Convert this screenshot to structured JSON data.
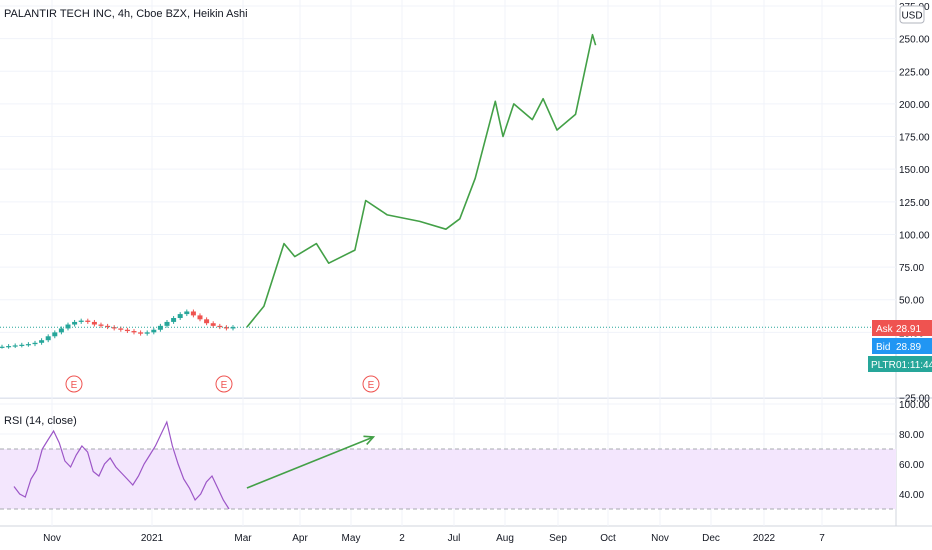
{
  "symbol_title": "PALANTIR TECH INC, 4h, Cboe BZX, Heikin Ashi",
  "currency_button": "USD",
  "colors": {
    "up": "#26a69a",
    "down": "#ef5350",
    "drawn_line": "#43a047",
    "rsi_line": "#9c56c7",
    "rsi_band": "#f3e6fd",
    "grid": "#f0f3fa",
    "axis_text": "#131722",
    "ask_bg": "#ef5350",
    "bid_bg": "#2196f3",
    "timer_bg": "#26a69a",
    "earnings": "#ef5350"
  },
  "price_scale": {
    "labels": [
      "275.00",
      "250.00",
      "225.00",
      "200.00",
      "175.00",
      "150.00",
      "125.00",
      "100.00",
      "75.00",
      "50.00",
      "25.00",
      "−25.00"
    ]
  },
  "badges": {
    "ask": {
      "label": "Ask",
      "value": "28.91"
    },
    "bid": {
      "label": "Bid",
      "value": "28.89"
    },
    "last": {
      "label": "PLTR",
      "value": "01:11:44"
    }
  },
  "earnings_marker_label": "E",
  "rsi": {
    "title": "RSI (14, close)",
    "scale_labels": [
      "100.00",
      "80.00",
      "60.00",
      "40.00"
    ]
  },
  "time_axis": {
    "labels": [
      "Nov",
      "2021",
      "Mar",
      "Apr",
      "May",
      "2",
      "Jul",
      "Aug",
      "Sep",
      "Oct",
      "Nov",
      "Dec",
      "2022",
      "7"
    ]
  },
  "chart_data": {
    "type": "line",
    "price_ylim": [
      -25,
      275
    ],
    "rsi_ylim": [
      25,
      100
    ],
    "rsi_bands": [
      30,
      70
    ],
    "current_price": 28.9,
    "candles_close": [
      14,
      14.5,
      15,
      15.5,
      16,
      17,
      19,
      22,
      25,
      28,
      31,
      33,
      34,
      33,
      31,
      30,
      29,
      28,
      27,
      26,
      25,
      24,
      25,
      27,
      30,
      33,
      36,
      39,
      41,
      38,
      35,
      32,
      30,
      29,
      28,
      29
    ],
    "projection_path": [
      {
        "x": "2021-02-22",
        "y": 29
      },
      {
        "x": "2021-03-05",
        "y": 45
      },
      {
        "x": "2021-03-18",
        "y": 93
      },
      {
        "x": "2021-03-25",
        "y": 83
      },
      {
        "x": "2021-04-08",
        "y": 93
      },
      {
        "x": "2021-04-16",
        "y": 78
      },
      {
        "x": "2021-05-03",
        "y": 88
      },
      {
        "x": "2021-05-10",
        "y": 126
      },
      {
        "x": "2021-05-24",
        "y": 115
      },
      {
        "x": "2021-06-14",
        "y": 110
      },
      {
        "x": "2021-07-01",
        "y": 104
      },
      {
        "x": "2021-07-10",
        "y": 112
      },
      {
        "x": "2021-07-20",
        "y": 143
      },
      {
        "x": "2021-08-02",
        "y": 202
      },
      {
        "x": "2021-08-07",
        "y": 175
      },
      {
        "x": "2021-08-14",
        "y": 200
      },
      {
        "x": "2021-08-26",
        "y": 188
      },
      {
        "x": "2021-09-02",
        "y": 204
      },
      {
        "x": "2021-09-11",
        "y": 180
      },
      {
        "x": "2021-09-23",
        "y": 192
      },
      {
        "x": "2021-10-04",
        "y": 253
      },
      {
        "x": "2021-10-06",
        "y": 245
      }
    ],
    "rsi_values": [
      45,
      40,
      38,
      50,
      56,
      70,
      76,
      82,
      74,
      62,
      58,
      66,
      72,
      68,
      55,
      52,
      60,
      64,
      58,
      54,
      50,
      46,
      52,
      60,
      66,
      72,
      80,
      88,
      72,
      60,
      50,
      44,
      36,
      40,
      48,
      52,
      44,
      36,
      30
    ],
    "rsi_projection": [
      {
        "x": "2021-02-22",
        "y": 44
      },
      {
        "x": "2021-05-15",
        "y": 78
      }
    ]
  }
}
